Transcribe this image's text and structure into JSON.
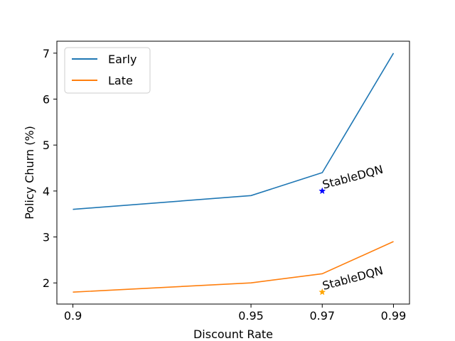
{
  "chart_data": {
    "type": "line",
    "xlabel": "Discount Rate",
    "ylabel": "Policy Churn (%)",
    "x": [
      0.9,
      0.95,
      0.97,
      0.99
    ],
    "x_tick_labels": [
      "0.9",
      "0.95",
      "0.97",
      "0.99"
    ],
    "y_ticks": [
      2,
      3,
      4,
      5,
      6,
      7
    ],
    "y_tick_labels": [
      "2",
      "3",
      "4",
      "5",
      "6",
      "7"
    ],
    "xlim": [
      0.8955,
      0.9945
    ],
    "ylim": [
      1.54,
      7.26
    ],
    "grid": false,
    "legend_position": "top-left",
    "series": [
      {
        "name": "Early",
        "color": "#1f77b4",
        "values": [
          3.6,
          3.9,
          4.4,
          7.0
        ]
      },
      {
        "name": "Late",
        "color": "#ff7f0e",
        "values": [
          1.8,
          2.0,
          2.2,
          2.9
        ]
      }
    ],
    "annotations": [
      {
        "text": "StableDQN",
        "x": 0.97,
        "y": 4.0,
        "marker": "star",
        "color": "#0000ff"
      },
      {
        "text": "StableDQN",
        "x": 0.97,
        "y": 1.8,
        "marker": "star",
        "color": "#ffa500"
      }
    ]
  }
}
